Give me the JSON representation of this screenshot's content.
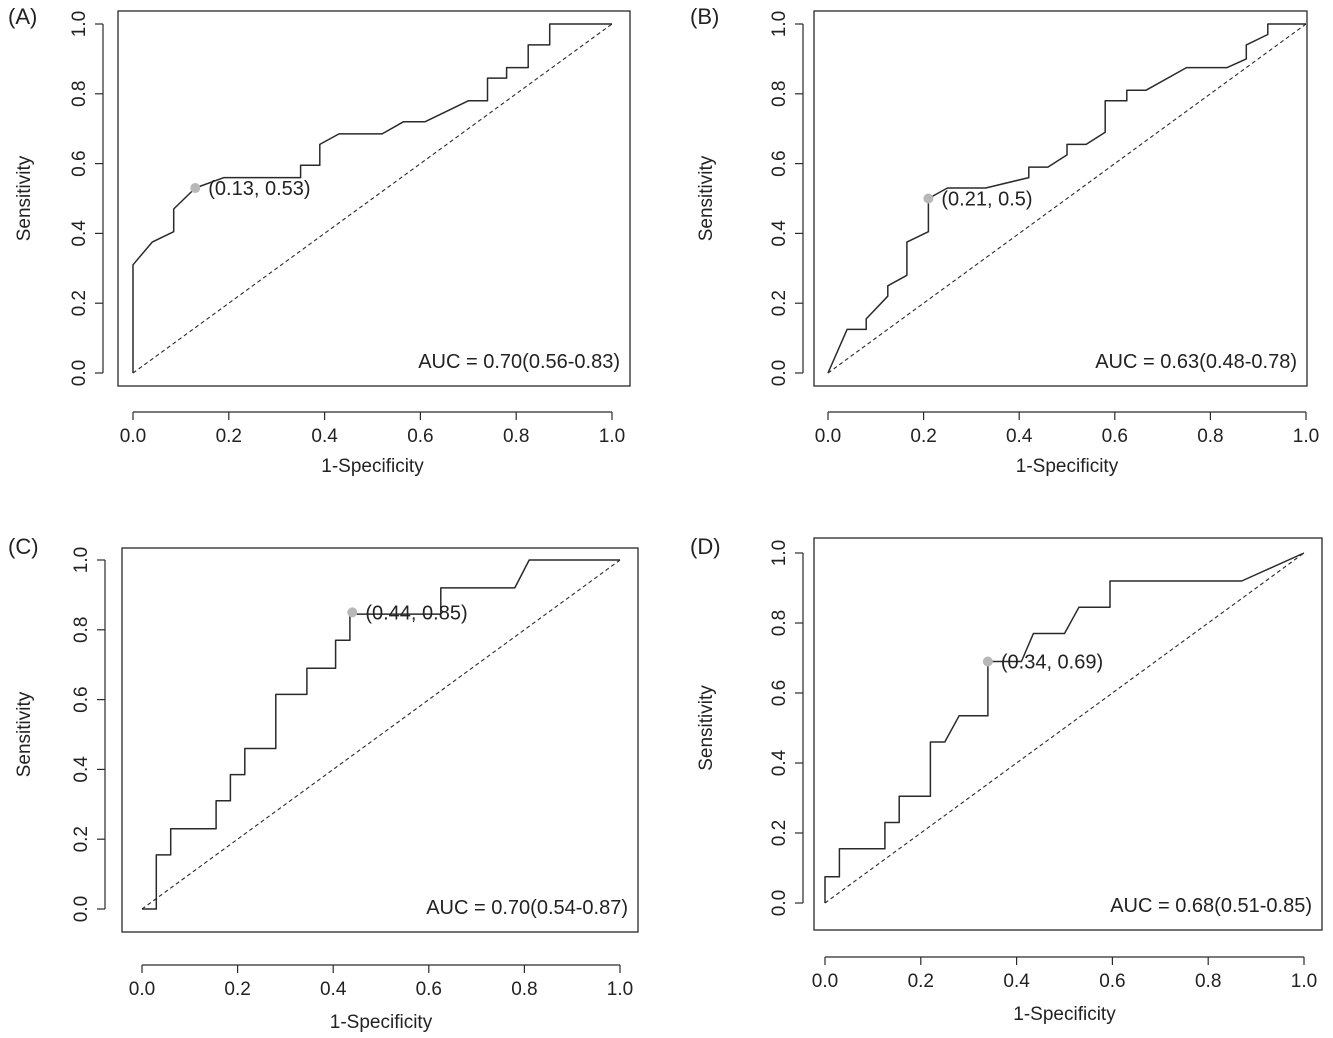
{
  "chart_data": [
    {
      "type": "line",
      "panel_label": "(A)",
      "xlabel": "1-Specificity",
      "ylabel": "Sensitivity",
      "xlim": [
        0,
        1
      ],
      "ylim": [
        0,
        1
      ],
      "xticks": [
        "0.0",
        "0.2",
        "0.4",
        "0.6",
        "0.8",
        "1.0"
      ],
      "yticks": [
        "0.0",
        "0.2",
        "0.4",
        "0.6",
        "0.8",
        "1.0"
      ],
      "auc_label": "AUC = 0.70(0.56-0.83)",
      "cutoff": {
        "x": 0.13,
        "y": 0.53,
        "label": "(0.13, 0.53)"
      },
      "reference_line": [
        [
          0,
          0
        ],
        [
          1,
          1
        ]
      ],
      "series": [
        {
          "values": [
            [
              0,
              0
            ],
            [
              0,
              0.31
            ],
            [
              0.04,
              0.375
            ],
            [
              0.085,
              0.405
            ],
            [
              0.085,
              0.47
            ],
            [
              0.13,
              0.53
            ],
            [
              0.19,
              0.56
            ],
            [
              0.35,
              0.56
            ],
            [
              0.35,
              0.595
            ],
            [
              0.39,
              0.595
            ],
            [
              0.39,
              0.655
            ],
            [
              0.43,
              0.685
            ],
            [
              0.52,
              0.685
            ],
            [
              0.565,
              0.72
            ],
            [
              0.61,
              0.72
            ],
            [
              0.7,
              0.78
            ],
            [
              0.74,
              0.78
            ],
            [
              0.74,
              0.845
            ],
            [
              0.78,
              0.845
            ],
            [
              0.78,
              0.875
            ],
            [
              0.825,
              0.875
            ],
            [
              0.825,
              0.94
            ],
            [
              0.87,
              0.94
            ],
            [
              0.87,
              1.0
            ],
            [
              1,
              1
            ]
          ]
        }
      ]
    },
    {
      "type": "line",
      "panel_label": "(B)",
      "xlabel": "1-Specificity",
      "ylabel": "Sensitivity",
      "xlim": [
        0,
        1
      ],
      "ylim": [
        0,
        1
      ],
      "xticks": [
        "0.0",
        "0.2",
        "0.4",
        "0.6",
        "0.8",
        "1.0"
      ],
      "yticks": [
        "0.0",
        "0.2",
        "0.4",
        "0.6",
        "0.8",
        "1.0"
      ],
      "auc_label": "AUC = 0.63(0.48-0.78)",
      "cutoff": {
        "x": 0.21,
        "y": 0.5,
        "label": "(0.21, 0.5)"
      },
      "reference_line": [
        [
          0,
          0
        ],
        [
          1,
          1
        ]
      ],
      "series": [
        {
          "values": [
            [
              0,
              0
            ],
            [
              0.04,
              0.125
            ],
            [
              0.08,
              0.125
            ],
            [
              0.08,
              0.155
            ],
            [
              0.125,
              0.22
            ],
            [
              0.125,
              0.25
            ],
            [
              0.165,
              0.28
            ],
            [
              0.165,
              0.375
            ],
            [
              0.21,
              0.405
            ],
            [
              0.21,
              0.5
            ],
            [
              0.25,
              0.53
            ],
            [
              0.33,
              0.53
            ],
            [
              0.42,
              0.56
            ],
            [
              0.42,
              0.59
            ],
            [
              0.46,
              0.59
            ],
            [
              0.5,
              0.625
            ],
            [
              0.5,
              0.655
            ],
            [
              0.54,
              0.655
            ],
            [
              0.58,
              0.69
            ],
            [
              0.58,
              0.78
            ],
            [
              0.625,
              0.78
            ],
            [
              0.625,
              0.81
            ],
            [
              0.665,
              0.81
            ],
            [
              0.75,
              0.875
            ],
            [
              0.835,
              0.875
            ],
            [
              0.875,
              0.9
            ],
            [
              0.875,
              0.94
            ],
            [
              0.92,
              0.97
            ],
            [
              0.92,
              1.0
            ],
            [
              1,
              1
            ]
          ]
        }
      ]
    },
    {
      "type": "line",
      "panel_label": "(C)",
      "xlabel": "1-Specificity",
      "ylabel": "Sensitivity",
      "xlim": [
        0,
        1
      ],
      "ylim": [
        0,
        1
      ],
      "xticks": [
        "0.0",
        "0.2",
        "0.4",
        "0.6",
        "0.8",
        "1.0"
      ],
      "yticks": [
        "0.0",
        "0.2",
        "0.4",
        "0.6",
        "0.8",
        "1.0"
      ],
      "auc_label": "AUC = 0.70(0.54-0.87)",
      "cutoff": {
        "x": 0.44,
        "y": 0.85,
        "label": "(0.44, 0.85)"
      },
      "reference_line": [
        [
          0,
          0
        ],
        [
          1,
          1
        ]
      ],
      "series": [
        {
          "values": [
            [
              0,
              0
            ],
            [
              0.03,
              0
            ],
            [
              0.03,
              0.155
            ],
            [
              0.06,
              0.155
            ],
            [
              0.06,
              0.23
            ],
            [
              0.155,
              0.23
            ],
            [
              0.155,
              0.31
            ],
            [
              0.185,
              0.31
            ],
            [
              0.185,
              0.385
            ],
            [
              0.215,
              0.385
            ],
            [
              0.215,
              0.46
            ],
            [
              0.28,
              0.46
            ],
            [
              0.28,
              0.615
            ],
            [
              0.345,
              0.615
            ],
            [
              0.345,
              0.69
            ],
            [
              0.405,
              0.69
            ],
            [
              0.405,
              0.77
            ],
            [
              0.435,
              0.77
            ],
            [
              0.435,
              0.845
            ],
            [
              0.625,
              0.845
            ],
            [
              0.625,
              0.92
            ],
            [
              0.78,
              0.92
            ],
            [
              0.81,
              1.0
            ],
            [
              1,
              1
            ]
          ]
        }
      ]
    },
    {
      "type": "line",
      "panel_label": "(D)",
      "xlabel": "1-Specificity",
      "ylabel": "Sensitivity",
      "xlim": [
        0,
        1
      ],
      "ylim": [
        0,
        1
      ],
      "xticks": [
        "0.0",
        "0.2",
        "0.4",
        "0.6",
        "0.8",
        "1.0"
      ],
      "yticks": [
        "0.0",
        "0.2",
        "0.4",
        "0.6",
        "0.8",
        "1.0"
      ],
      "auc_label": "AUC = 0.68(0.51-0.85)",
      "cutoff": {
        "x": 0.34,
        "y": 0.69,
        "label": "(0.34, 0.69)"
      },
      "reference_line": [
        [
          0,
          0
        ],
        [
          1,
          1
        ]
      ],
      "series": [
        {
          "values": [
            [
              0,
              0
            ],
            [
              0,
              0.075
            ],
            [
              0.03,
              0.075
            ],
            [
              0.03,
              0.155
            ],
            [
              0.125,
              0.155
            ],
            [
              0.125,
              0.23
            ],
            [
              0.155,
              0.23
            ],
            [
              0.155,
              0.305
            ],
            [
              0.22,
              0.305
            ],
            [
              0.22,
              0.46
            ],
            [
              0.25,
              0.46
            ],
            [
              0.28,
              0.535
            ],
            [
              0.34,
              0.535
            ],
            [
              0.34,
              0.69
            ],
            [
              0.41,
              0.69
            ],
            [
              0.435,
              0.77
            ],
            [
              0.5,
              0.77
            ],
            [
              0.53,
              0.845
            ],
            [
              0.595,
              0.845
            ],
            [
              0.595,
              0.92
            ],
            [
              0.87,
              0.92
            ],
            [
              1,
              1
            ]
          ]
        }
      ]
    }
  ],
  "colors": {
    "curve": "#2a2a2a",
    "reference": "#2a2a2a",
    "cutoff_point": "#b8b8b8",
    "frame": "#2a2a2a"
  }
}
